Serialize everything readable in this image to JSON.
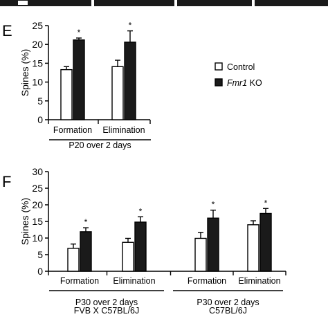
{
  "panels": {
    "e_letter": "E",
    "f_letter": "F"
  },
  "legend": {
    "control": "Control",
    "ko_italic": "Fmr1",
    "ko_rest": " KO"
  },
  "colors": {
    "control_fill": "#ffffff",
    "ko_fill": "#1a1a1a",
    "strip": "#1a1a1a"
  },
  "chart_data": [
    {
      "panel": "E",
      "type": "bar",
      "ylabel": "Spines (%)",
      "ylim": [
        0,
        25
      ],
      "yticks": [
        0,
        5,
        10,
        15,
        20,
        25
      ],
      "categories": [
        "Formation",
        "Elimination"
      ],
      "series": [
        {
          "name": "Control",
          "values": [
            13.3,
            14.1
          ],
          "errors": [
            0.8,
            1.7
          ]
        },
        {
          "name": "Fmr1 KO",
          "values": [
            21.2,
            20.6
          ],
          "errors": [
            0.5,
            3.0
          ]
        }
      ],
      "significance": [
        "*",
        "*"
      ],
      "groups": [
        {
          "label_lines": [
            "P20 over 2 days"
          ],
          "categories": [
            0,
            1
          ]
        }
      ]
    },
    {
      "panel": "F",
      "type": "bar",
      "ylabel": "Spines (%)",
      "ylim": [
        0,
        30
      ],
      "yticks": [
        0,
        5,
        10,
        15,
        20,
        25,
        30
      ],
      "categories": [
        "Formation",
        "Elimination",
        "Formation",
        "Elimination"
      ],
      "series": [
        {
          "name": "Control",
          "values": [
            6.9,
            8.7,
            9.9,
            14.0
          ],
          "errors": [
            1.3,
            1.2,
            1.8,
            1.2
          ]
        },
        {
          "name": "Fmr1 KO",
          "values": [
            11.9,
            14.8,
            16.0,
            17.4
          ],
          "errors": [
            1.2,
            1.6,
            2.4,
            1.5
          ]
        }
      ],
      "significance": [
        "*",
        "*",
        "*",
        "*"
      ],
      "groups": [
        {
          "label_lines": [
            "P30 over 2 days",
            "FVB X C57BL/6J"
          ],
          "categories": [
            0,
            1
          ]
        },
        {
          "label_lines": [
            "P30 over 2 days",
            "C57BL/6J"
          ],
          "categories": [
            2,
            3
          ]
        }
      ]
    }
  ]
}
